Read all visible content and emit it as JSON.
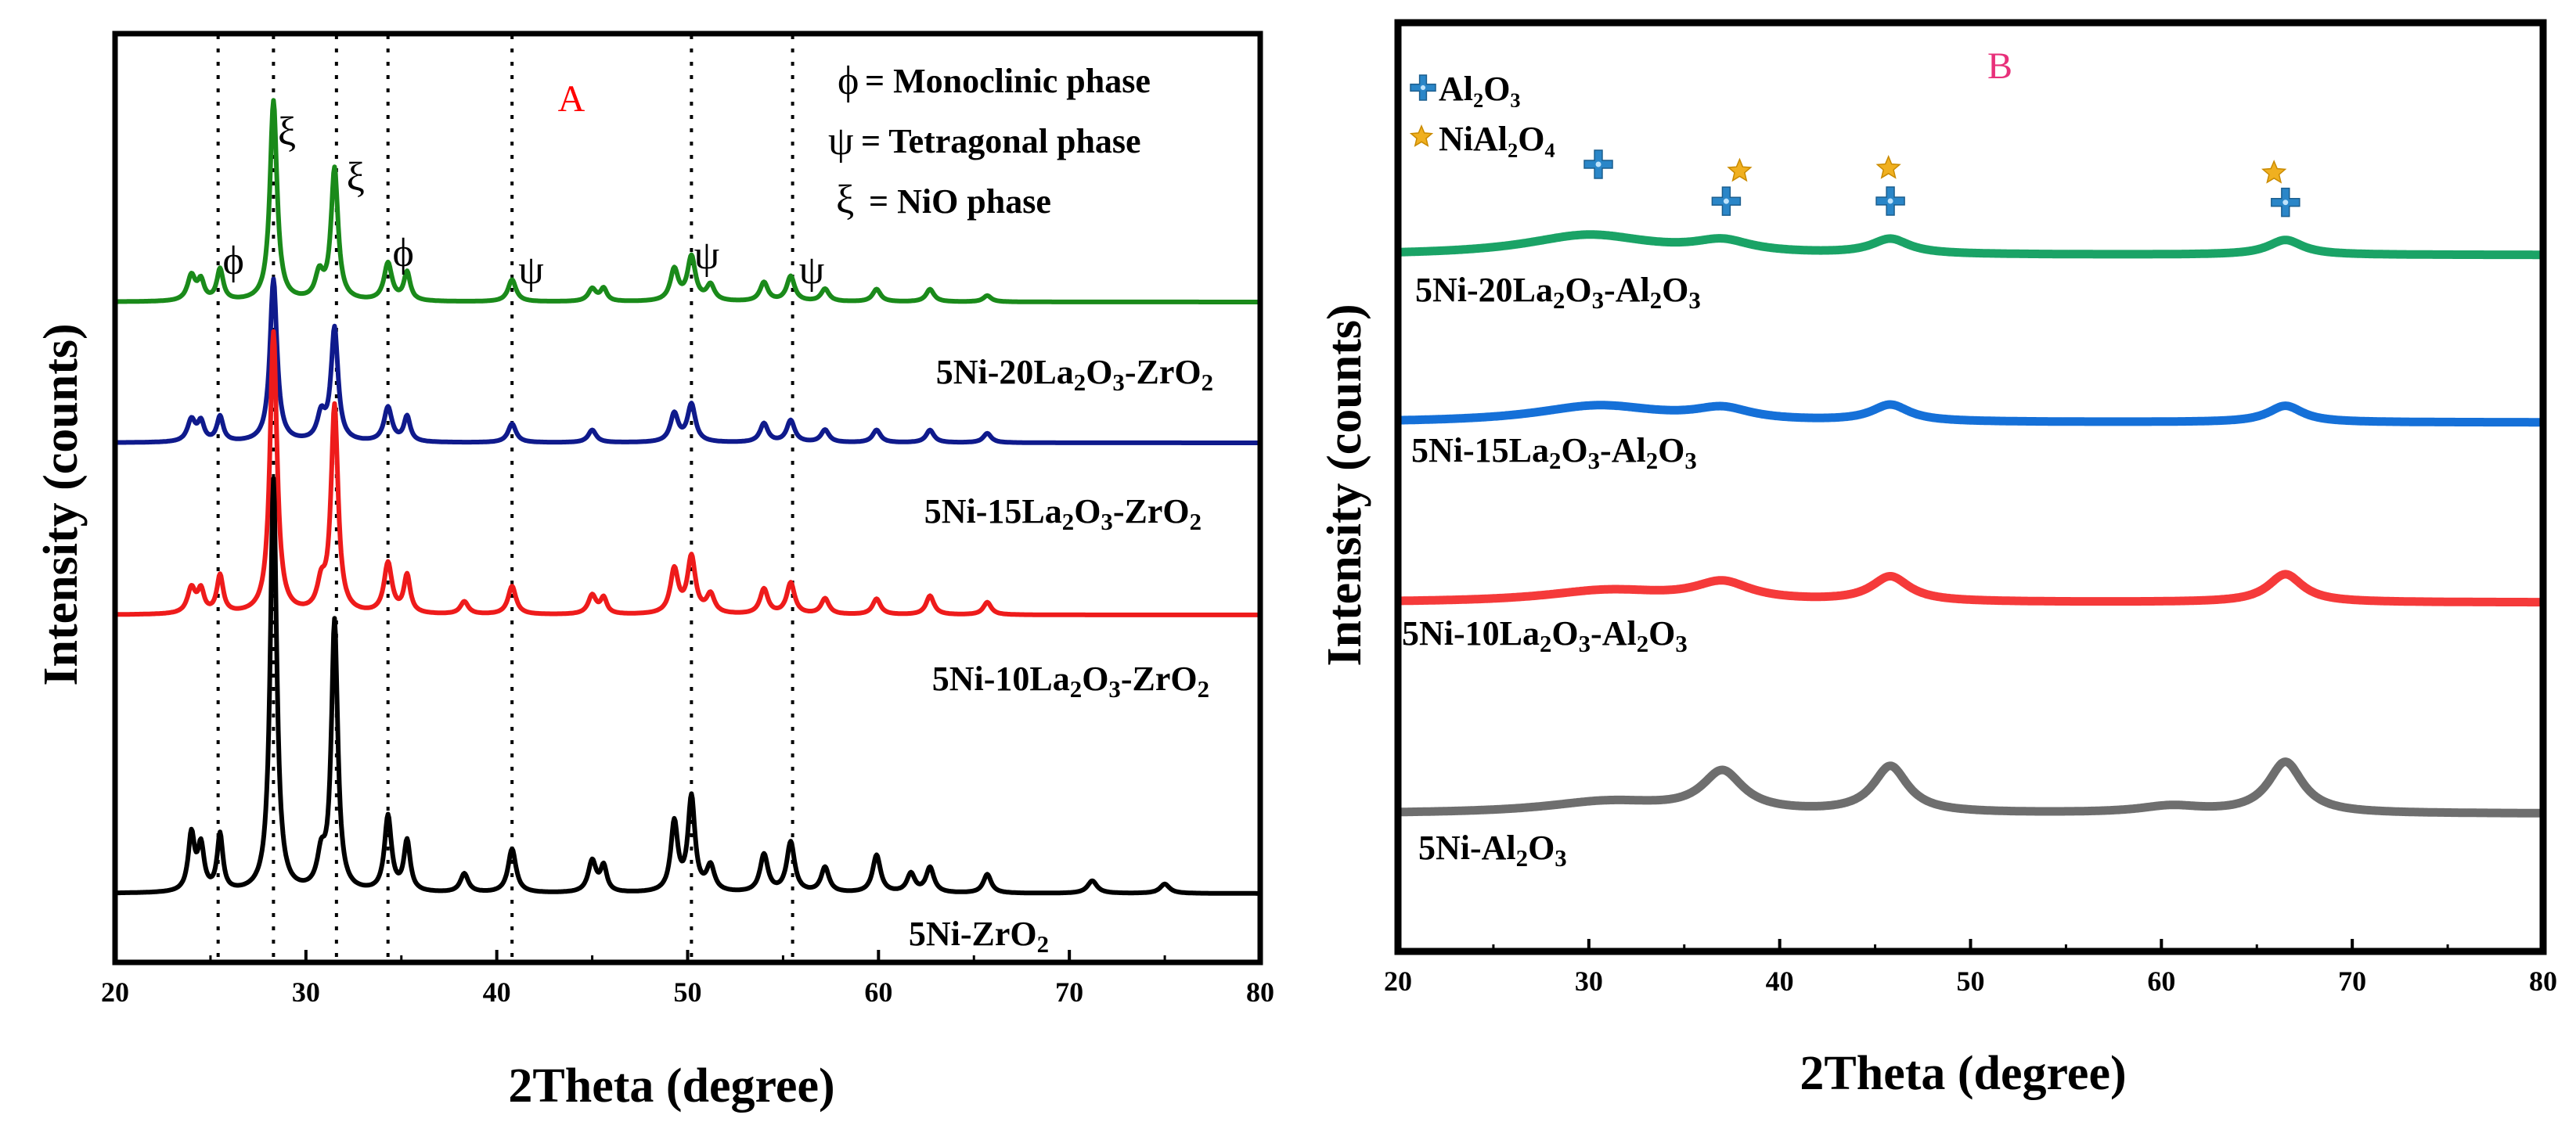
{
  "chart_data": [
    {
      "panel": "A",
      "type": "line",
      "title": "A",
      "title_color": "#ff0000",
      "xlabel": "2Theta (degree)",
      "ylabel": "Intensity (counts)",
      "xlim": [
        20,
        80
      ],
      "xticks": [
        20,
        30,
        40,
        50,
        60,
        70,
        80
      ],
      "grid": false,
      "reference_lines": [
        25.4,
        28.3,
        31.6,
        34.3,
        40.8,
        50.2,
        55.5
      ],
      "legend": [
        {
          "symbol": "ϕ",
          "text": "= Monoclinic phase"
        },
        {
          "symbol": "ψ",
          "text": "= Tetragonal phase"
        },
        {
          "symbol": "ξ",
          "text": "= NiO phase"
        }
      ],
      "annotations": [
        {
          "symbol": "ϕ",
          "x": 26.2,
          "series": "5Ni-20La2O3-ZrO2"
        },
        {
          "symbol": "ξ",
          "x": 29.0,
          "series": "5Ni-20La2O3-ZrO2"
        },
        {
          "symbol": "ξ",
          "x": 32.6,
          "series": "5Ni-20La2O3-ZrO2"
        },
        {
          "symbol": "ϕ",
          "x": 35.1,
          "series": "5Ni-20La2O3-ZrO2"
        },
        {
          "symbol": "ψ",
          "x": 41.8,
          "series": "5Ni-20La2O3-ZrO2"
        },
        {
          "symbol": "ψ",
          "x": 51.0,
          "series": "5Ni-20La2O3-ZrO2"
        },
        {
          "symbol": "ψ",
          "x": 56.5,
          "series": "5Ni-20La2O3-ZrO2"
        }
      ],
      "series": [
        {
          "name": "5Ni-20La2O3-ZrO2",
          "label": "5Ni-20La₂O₃-ZrO₂",
          "color": "#1a8a1a",
          "baseline": 0.3,
          "peaks": [
            [
              24.0,
              0.4,
              0.25
            ],
            [
              24.5,
              0.3,
              0.2
            ],
            [
              25.5,
              0.5,
              0.2
            ],
            [
              28.3,
              3.2,
              0.22
            ],
            [
              30.7,
              0.4,
              0.25
            ],
            [
              31.5,
              2.1,
              0.22
            ],
            [
              34.3,
              0.6,
              0.25
            ],
            [
              35.3,
              0.45,
              0.2
            ],
            [
              40.8,
              0.35,
              0.25
            ],
            [
              45.0,
              0.2,
              0.25
            ],
            [
              45.6,
              0.2,
              0.2
            ],
            [
              49.3,
              0.5,
              0.25
            ],
            [
              50.2,
              0.7,
              0.25
            ],
            [
              51.2,
              0.25,
              0.25
            ],
            [
              54.0,
              0.3,
              0.25
            ],
            [
              55.4,
              0.4,
              0.25
            ],
            [
              57.2,
              0.2,
              0.25
            ],
            [
              59.9,
              0.2,
              0.25
            ],
            [
              62.7,
              0.2,
              0.25
            ],
            [
              65.7,
              0.1,
              0.25
            ]
          ]
        },
        {
          "name": "5Ni-15La2O3-ZrO2",
          "label": "5Ni-15La₂O₃-ZrO₂",
          "color": "#0f1a8c",
          "baseline": 0.3,
          "peaks": [
            [
              24.0,
              0.35,
              0.25
            ],
            [
              24.5,
              0.3,
              0.2
            ],
            [
              25.5,
              0.4,
              0.2
            ],
            [
              28.3,
              2.6,
              0.22
            ],
            [
              30.8,
              0.4,
              0.25
            ],
            [
              31.5,
              1.8,
              0.22
            ],
            [
              34.3,
              0.55,
              0.25
            ],
            [
              35.3,
              0.4,
              0.2
            ],
            [
              40.8,
              0.3,
              0.25
            ],
            [
              45.0,
              0.2,
              0.25
            ],
            [
              49.3,
              0.45,
              0.25
            ],
            [
              50.2,
              0.6,
              0.25
            ],
            [
              54.0,
              0.3,
              0.25
            ],
            [
              55.4,
              0.35,
              0.25
            ],
            [
              57.2,
              0.2,
              0.25
            ],
            [
              59.9,
              0.2,
              0.25
            ],
            [
              62.7,
              0.2,
              0.25
            ],
            [
              65.7,
              0.15,
              0.25
            ]
          ]
        },
        {
          "name": "5Ni-10La2O3-ZrO2",
          "label": "5Ni-10La₂O₃-ZrO₂",
          "color": "#ee1b1b",
          "baseline": 0.3,
          "peaks": [
            [
              24.0,
              0.4,
              0.25
            ],
            [
              24.5,
              0.35,
              0.2
            ],
            [
              25.5,
              0.6,
              0.2
            ],
            [
              28.3,
              4.5,
              0.22
            ],
            [
              30.8,
              0.4,
              0.25
            ],
            [
              31.5,
              3.3,
              0.22
            ],
            [
              34.3,
              0.8,
              0.25
            ],
            [
              35.3,
              0.6,
              0.2
            ],
            [
              38.3,
              0.2,
              0.25
            ],
            [
              40.8,
              0.45,
              0.25
            ],
            [
              45.0,
              0.3,
              0.25
            ],
            [
              45.6,
              0.25,
              0.2
            ],
            [
              49.3,
              0.7,
              0.25
            ],
            [
              50.2,
              0.9,
              0.25
            ],
            [
              51.2,
              0.3,
              0.25
            ],
            [
              54.0,
              0.4,
              0.25
            ],
            [
              55.4,
              0.5,
              0.25
            ],
            [
              57.2,
              0.25,
              0.25
            ],
            [
              59.9,
              0.25,
              0.25
            ],
            [
              62.7,
              0.3,
              0.25
            ],
            [
              65.7,
              0.2,
              0.25
            ]
          ]
        },
        {
          "name": "5Ni-ZrO2",
          "label": "5Ni-ZrO₂",
          "color": "#000000",
          "baseline": 0.2,
          "peaks": [
            [
              24.0,
              0.9,
              0.2
            ],
            [
              24.5,
              0.7,
              0.2
            ],
            [
              25.5,
              0.9,
              0.18
            ],
            [
              28.3,
              6.6,
              0.2
            ],
            [
              30.8,
              0.5,
              0.25
            ],
            [
              31.5,
              4.3,
              0.2
            ],
            [
              34.3,
              1.2,
              0.22
            ],
            [
              35.3,
              0.8,
              0.2
            ],
            [
              38.3,
              0.3,
              0.25
            ],
            [
              40.8,
              0.7,
              0.25
            ],
            [
              45.0,
              0.5,
              0.25
            ],
            [
              45.6,
              0.4,
              0.2
            ],
            [
              49.3,
              1.1,
              0.22
            ],
            [
              50.2,
              1.5,
              0.22
            ],
            [
              51.2,
              0.4,
              0.25
            ],
            [
              54.0,
              0.6,
              0.25
            ],
            [
              55.4,
              0.8,
              0.25
            ],
            [
              57.2,
              0.4,
              0.25
            ],
            [
              59.9,
              0.6,
              0.25
            ],
            [
              61.7,
              0.3,
              0.25
            ],
            [
              62.7,
              0.4,
              0.25
            ],
            [
              65.7,
              0.3,
              0.25
            ],
            [
              71.2,
              0.2,
              0.3
            ],
            [
              75.0,
              0.15,
              0.3
            ]
          ]
        }
      ]
    },
    {
      "panel": "B",
      "type": "line",
      "title": "B",
      "title_color": "#e8307a",
      "xlabel": "2Theta (degree)",
      "ylabel": "Intensity (counts)",
      "xlim": [
        20,
        80
      ],
      "xticks": [
        20,
        30,
        40,
        50,
        60,
        70,
        80
      ],
      "grid": false,
      "legend": [
        {
          "marker": "cross",
          "color": "#2a86c8",
          "text": "Al₂O₃"
        },
        {
          "marker": "star",
          "color": "#f0b020",
          "text": "NiAl₂O₄"
        }
      ],
      "markers": [
        {
          "type": "cross",
          "x": 30.5,
          "series": "5Ni-20La2O3-Al2O3",
          "offset": 1
        },
        {
          "type": "cross",
          "x": 37.2,
          "series": "5Ni-20La2O3-Al2O3",
          "offset": 0
        },
        {
          "type": "star",
          "x": 37.9,
          "series": "5Ni-20La2O3-Al2O3",
          "offset": 1
        },
        {
          "type": "cross",
          "x": 45.8,
          "series": "5Ni-20La2O3-Al2O3",
          "offset": 0
        },
        {
          "type": "star",
          "x": 45.7,
          "series": "5Ni-20La2O3-Al2O3",
          "offset": 1
        },
        {
          "type": "cross",
          "x": 66.5,
          "series": "5Ni-20La2O3-Al2O3",
          "offset": 0
        },
        {
          "type": "star",
          "x": 65.9,
          "series": "5Ni-20La2O3-Al2O3",
          "offset": 1
        }
      ],
      "series": [
        {
          "name": "5Ni-20La2O3-Al2O3",
          "label": "5Ni-20La₂O₃-Al₂O₃",
          "color": "#1aa366",
          "baseline": 0,
          "peaks": [
            [
              30.0,
              0.6,
              4.0
            ],
            [
              37.0,
              0.35,
              1.8
            ],
            [
              45.8,
              0.45,
              1.2
            ],
            [
              66.5,
              0.45,
              1.1
            ]
          ]
        },
        {
          "name": "5Ni-15La2O3-Al2O3",
          "label": "5Ni-15La₂O₃-Al₂O₃",
          "color": "#1570d8",
          "baseline": 0,
          "peaks": [
            [
              30.5,
              0.5,
              4.0
            ],
            [
              37.0,
              0.35,
              1.8
            ],
            [
              45.8,
              0.5,
              1.2
            ],
            [
              66.5,
              0.5,
              1.1
            ]
          ]
        },
        {
          "name": "5Ni-10La2O3-Al2O3",
          "label": "5Ni-10La₂O₃-Al₂O₃",
          "color": "#f53a3a",
          "baseline": 0,
          "peaks": [
            [
              31.0,
              0.35,
              4.0
            ],
            [
              37.0,
              0.55,
              1.8
            ],
            [
              45.8,
              0.75,
              1.2
            ],
            [
              66.5,
              0.85,
              1.1
            ]
          ]
        },
        {
          "name": "5Ni-Al2O3",
          "label": "5Ni-Al₂O₃",
          "color": "#6e6e6e",
          "baseline": 0,
          "peaks": [
            [
              31.0,
              0.35,
              4.0
            ],
            [
              37.0,
              1.2,
              1.3
            ],
            [
              45.8,
              1.4,
              1.1
            ],
            [
              60.5,
              0.2,
              2.0
            ],
            [
              66.5,
              1.55,
              1.1
            ]
          ]
        }
      ]
    }
  ]
}
